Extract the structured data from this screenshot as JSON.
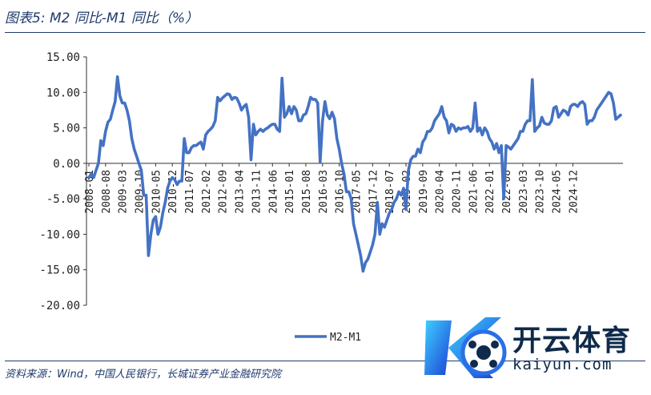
{
  "title": "图表5:  M2 同比-M1 同比（%）",
  "source": "资料来源：Wind，中国人民银行，长城证券产业金融研究院",
  "watermark": {
    "cn": "开云体育",
    "en": "kaiyun.com"
  },
  "chart_data": {
    "type": "line",
    "ylim": [
      -20,
      15
    ],
    "yticks": [
      15,
      10,
      5,
      0,
      -5,
      -10,
      -15,
      -20
    ],
    "ytick_labels": [
      "15.00",
      "10.00",
      "5.00",
      "0.00",
      "-5.00",
      "-10.00",
      "-15.00",
      "-20.00"
    ],
    "xtick_labels": [
      "2008-01",
      "2008-08",
      "2009-03",
      "2009-10",
      "2010-05",
      "2010-12",
      "2011-07",
      "2012-02",
      "2012-09",
      "2013-04",
      "2013-11",
      "2014-06",
      "2015-01",
      "2015-08",
      "2016-03",
      "2016-10",
      "2017-05",
      "2017-12",
      "2018-07",
      "2019-02",
      "2019-09",
      "2020-04",
      "2020-11",
      "2021-06",
      "2022-01",
      "2022-08",
      "2023-03",
      "2023-10",
      "2024-05",
      "2024-12"
    ],
    "legend": "bottom-center",
    "series": [
      {
        "name": "M2-M1",
        "color": "#4472c4",
        "values": [
          -2,
          -1.5,
          -2,
          -1,
          0,
          3.2,
          2.5,
          4.5,
          5.8,
          6.2,
          7.5,
          8.7,
          12.2,
          9.5,
          8.5,
          8.5,
          7.5,
          6,
          3.5,
          2,
          1,
          0,
          -1,
          -4.5,
          -4.5,
          -13,
          -10,
          -8,
          -7.5,
          -10,
          -9,
          -7,
          -5.5,
          -3.5,
          -2.5,
          -2,
          -2.3,
          -3,
          -2.5,
          -2.5,
          3.5,
          1.5,
          1.5,
          2.2,
          2.5,
          2.5,
          2.8,
          3,
          2,
          4,
          4.5,
          4.8,
          5.2,
          6,
          9.3,
          8.8,
          9.2,
          9.5,
          9.8,
          9.7,
          9,
          9.3,
          9.2,
          8.5,
          7.5,
          8,
          8.3,
          6.5,
          0.5,
          5.5,
          4,
          4.5,
          4.8,
          4.5,
          4.8,
          5,
          5.3,
          5.5,
          5.5,
          4.8,
          4.5,
          12,
          6.5,
          7,
          8,
          7,
          8,
          7.5,
          6,
          6,
          6.8,
          7,
          8,
          9.3,
          9,
          9,
          8.5,
          0.2,
          6,
          8.7,
          6.8,
          6.3,
          7.2,
          6.3,
          3.5,
          2,
          0,
          -1.5,
          -4,
          -4,
          -5,
          -8.5,
          -10,
          -11.5,
          -13,
          -15.2,
          -14,
          -13.5,
          -12.5,
          -11.5,
          -10,
          -5.5,
          -10,
          -8.5,
          -9,
          -8,
          -7,
          -6.5,
          -5.5,
          -5,
          -4,
          -4.5,
          -3.5,
          -6.5,
          -1,
          0.5,
          1,
          1,
          2,
          1.5,
          3,
          3.5,
          4.5,
          4.5,
          5,
          6,
          6.5,
          7,
          8,
          6.5,
          6,
          4.3,
          5.5,
          5.3,
          4.5,
          5,
          4.8,
          5,
          5,
          5.2,
          4.5,
          5,
          8.5,
          4.5,
          5,
          4,
          5,
          4.5,
          3.5,
          3,
          2,
          2.8,
          1.5,
          2.5,
          -5,
          2.5,
          2.3,
          2,
          2.5,
          3,
          3.5,
          4.5,
          4.5,
          5.5,
          6,
          6,
          11.8,
          4.5,
          5,
          5.3,
          6.5,
          5.7,
          5.5,
          5.5,
          6,
          7.8,
          8,
          6.5,
          7,
          7.5,
          7.3,
          6.8,
          8,
          8.3,
          8.3,
          8,
          8.5,
          8.7,
          8.3,
          5.5,
          6,
          6,
          6.5,
          7.5,
          8,
          8.5,
          9,
          9.5,
          10,
          9.8,
          8.5,
          6.2,
          6.5,
          6.8
        ]
      }
    ]
  }
}
